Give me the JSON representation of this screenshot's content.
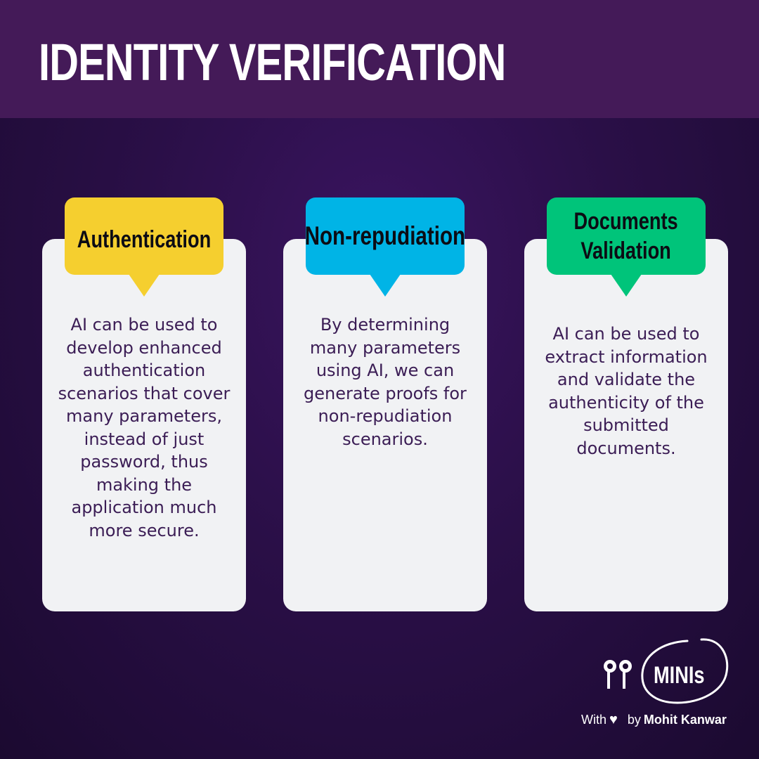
{
  "header": {
    "title": "IDENTITY VERIFICATION"
  },
  "colors": {
    "auth_tag": "#f5cf2f",
    "nonrep_tag": "#00b4e6",
    "docs_tag": "#00c47a",
    "header_bg": "#441a58"
  },
  "cards": [
    {
      "tag": "Authentication",
      "text": "AI can be used to develop enhanced authentication scenarios that cover many parameters, instead of just password, thus making the application much more secure."
    },
    {
      "tag": "Non-repudiation",
      "text": "By determining many parameters using AI, we can generate proofs for non-repudiation scenarios."
    },
    {
      "tag_line1": "Documents",
      "tag_line2": "Validation",
      "text": "AI can be used to extract information and validate the authenticity of the submitted documents."
    }
  ],
  "branding": {
    "logo_text": "MINIs",
    "logo_icon": "double-pin-icon",
    "credit_with": "With",
    "credit_heart_icon": "heart-icon",
    "credit_by": "by",
    "credit_author": "Mohit Kanwar"
  }
}
